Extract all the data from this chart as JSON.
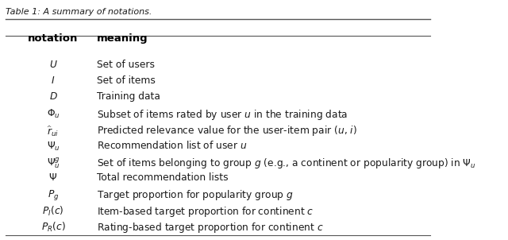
{
  "title": "Table 1: A summary of notations.",
  "col1_header": "notation",
  "col2_header": "meaning",
  "background_color": "#ffffff",
  "text_color": "#1a1a1a",
  "header_color": "#000000",
  "line_color": "#555555",
  "title_fontsize": 8.0,
  "header_fontsize": 9.5,
  "row_fontsize": 8.8
}
